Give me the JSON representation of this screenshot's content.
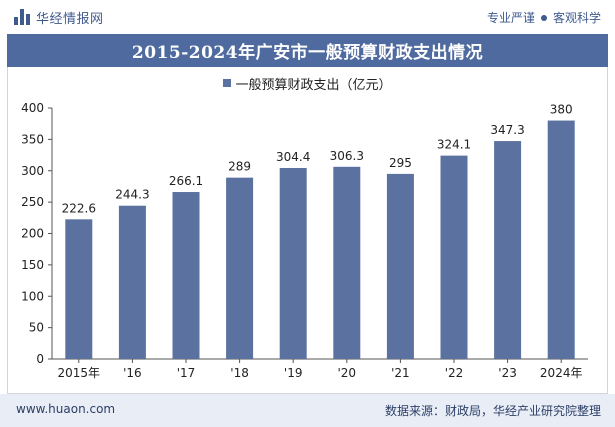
{
  "header": {
    "brand_name": "华经情报网",
    "tag_left": "专业严谨",
    "tag_right": "客观科学"
  },
  "chart_data": {
    "type": "bar",
    "title": "2015-2024年广安市一般预算财政支出情况",
    "legend": "一般预算财政支出（亿元）",
    "categories": [
      "2015年",
      "'16",
      "'17",
      "'18",
      "'19",
      "'20",
      "'21",
      "'22",
      "'23",
      "2024年"
    ],
    "values": [
      222.6,
      244.3,
      266.1,
      289,
      304.4,
      306.3,
      295,
      324.1,
      347.3,
      380
    ],
    "value_labels": [
      "222.6",
      "244.3",
      "266.1",
      "289",
      "304.4",
      "306.3",
      "295",
      "324.1",
      "347.3",
      "380"
    ],
    "ylim": [
      0,
      400
    ],
    "yticks": [
      0,
      50,
      100,
      150,
      200,
      250,
      300,
      350,
      400
    ],
    "xlabel": "",
    "ylabel": "",
    "grid": false,
    "bar_color": "#5b72a0",
    "legend_position": "top-center"
  },
  "footer": {
    "url": "www.huaon.com",
    "source": "数据来源：财政局，华经产业研究院整理"
  }
}
